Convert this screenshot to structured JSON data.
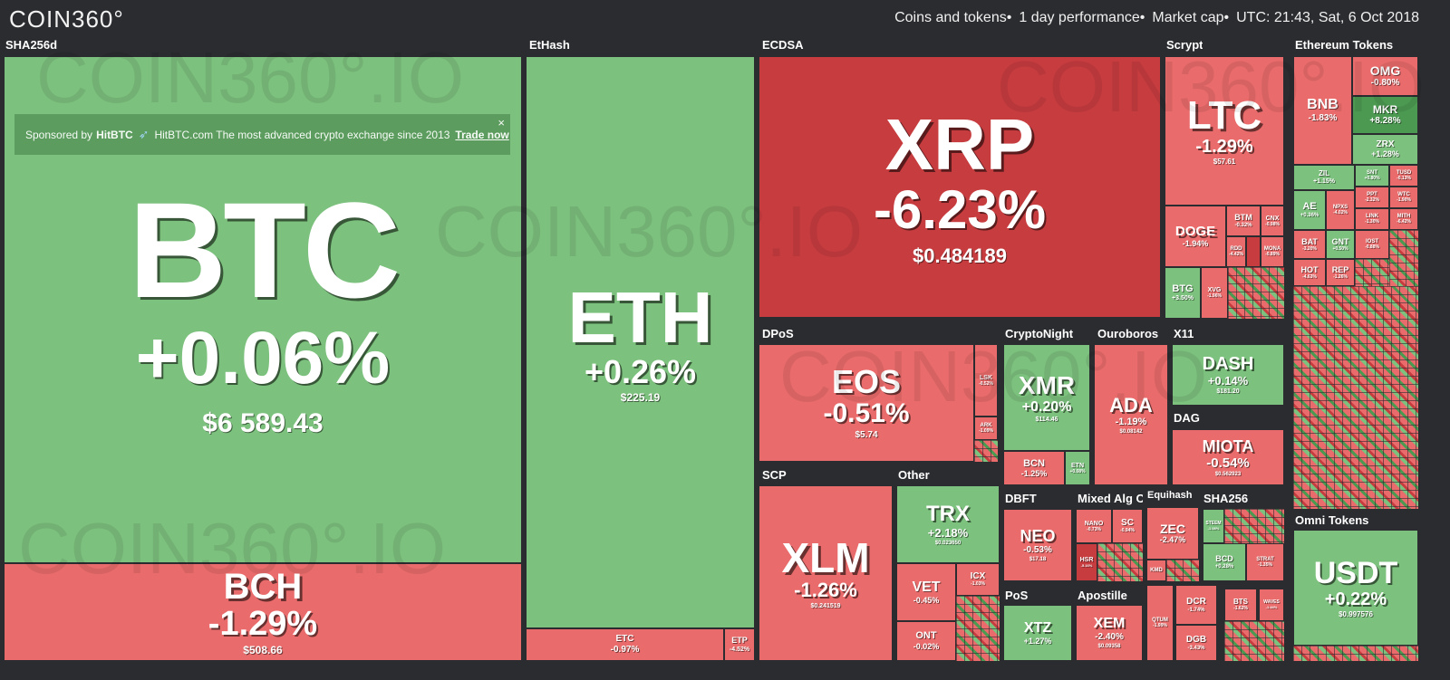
{
  "header": {
    "logo": "COIN360°",
    "filter": "Coins and tokens",
    "period": "1 day performance",
    "metric": "Market cap",
    "time": "UTC: 21:43, Sat, 6 Oct 2018",
    "sep": "•"
  },
  "sponsor": {
    "prefix": "Sponsored by",
    "brand": "HitBTC",
    "text": "HitBTC.com The most advanced crypto exchange since 2013",
    "cta": "Trade now",
    "close": "×"
  },
  "groups": {
    "sha256d": "SHA256d",
    "ethash": "EtHash",
    "ecdsa": "ECDSA",
    "scrypt": "Scrypt",
    "ethereum_tokens": "Ethereum Tokens",
    "dpos": "DPoS",
    "cryptonight": "CryptoNight",
    "ouroboros": "Ouroboros",
    "x11": "X11",
    "dag": "DAG",
    "scp": "SCP",
    "other": "Other",
    "dbft": "DBFT",
    "mixed": "Mixed Alg Ca",
    "equihash": "Equihash",
    "sha256": "SHA256",
    "omni": "Omni Tokens",
    "pos": "PoS",
    "apostille": "Apostille"
  },
  "coins": {
    "btc": {
      "sym": "BTC",
      "chg": "+0.06%",
      "price": "$6 589.43"
    },
    "bch": {
      "sym": "BCH",
      "chg": "-1.29%",
      "price": "$508.66"
    },
    "eth": {
      "sym": "ETH",
      "chg": "+0.26%",
      "price": "$225.19"
    },
    "etc": {
      "sym": "ETC",
      "chg": "-0.97%"
    },
    "etp": {
      "sym": "ETP",
      "chg": "-4.52%"
    },
    "xrp": {
      "sym": "XRP",
      "chg": "-6.23%",
      "price": "$0.484189"
    },
    "ltc": {
      "sym": "LTC",
      "chg": "-1.29%",
      "price": "$57.61"
    },
    "doge": {
      "sym": "DOGE",
      "chg": "-1.94%"
    },
    "btm": {
      "sym": "BTM",
      "chg": "-0.32%"
    },
    "cnx": {
      "sym": "CNX",
      "chg": "-0.98%"
    },
    "rdd": {
      "sym": "RDD",
      "chg": "-4.42%"
    },
    "mona": {
      "sym": "MONA",
      "chg": "-0.89%"
    },
    "btg": {
      "sym": "BTG",
      "chg": "+3.50%"
    },
    "xvg": {
      "sym": "XVG",
      "chg": "-1.96%"
    },
    "eos": {
      "sym": "EOS",
      "chg": "-0.51%",
      "price": "$5.74"
    },
    "lsk": {
      "sym": "LSK",
      "chg": "-0.52%"
    },
    "ark": {
      "sym": "ARK",
      "chg": "-1.09%"
    },
    "xmr": {
      "sym": "XMR",
      "chg": "+0.20%",
      "price": "$114.46"
    },
    "bcn": {
      "sym": "BCN",
      "chg": "-1.25%"
    },
    "etn": {
      "sym": "ETN",
      "chg": "+0.08%"
    },
    "ada": {
      "sym": "ADA",
      "chg": "-1.19%",
      "price": "$0.08142"
    },
    "dash": {
      "sym": "DASH",
      "chg": "+0.14%",
      "price": "$181.20"
    },
    "miota": {
      "sym": "MIOTA",
      "chg": "-0.54%",
      "price": "$0.562923"
    },
    "xlm": {
      "sym": "XLM",
      "chg": "-1.26%",
      "price": "$0.241519"
    },
    "trx": {
      "sym": "TRX",
      "chg": "+2.18%",
      "price": "$0.023650"
    },
    "vet": {
      "sym": "VET",
      "chg": "-0.45%"
    },
    "icx": {
      "sym": "ICX",
      "chg": "-1.03%"
    },
    "ont": {
      "sym": "ONT",
      "chg": "-0.02%"
    },
    "neo": {
      "sym": "NEO",
      "chg": "-0.53%",
      "price": "$17.18"
    },
    "nano": {
      "sym": "NANO",
      "chg": "-0.73%"
    },
    "sc": {
      "sym": "SC",
      "chg": "-0.94%"
    },
    "hsr": {
      "sym": "HSR",
      "chg": "-5.16%"
    },
    "zec": {
      "sym": "ZEC",
      "chg": "-2.47%"
    },
    "kmd": {
      "sym": "KMD",
      "chg": "-1.85%"
    },
    "steem": {
      "sym": "STEEM",
      "chg": "-1.08%"
    },
    "bcd": {
      "sym": "BCD",
      "chg": "+0.28%"
    },
    "strat": {
      "sym": "STRAT",
      "chg": "-1.35%"
    },
    "xtz": {
      "sym": "XTZ",
      "chg": "+1.27%"
    },
    "xem": {
      "sym": "XEM",
      "chg": "-2.40%",
      "price": "$0.09358"
    },
    "qtum": {
      "sym": "QTUM",
      "chg": "-1.99%"
    },
    "dcr": {
      "sym": "DCR",
      "chg": "-1.74%"
    },
    "bts": {
      "sym": "BTS",
      "chg": "-1.62%"
    },
    "waves": {
      "sym": "WAVES",
      "chg": "-1.44%"
    },
    "dgb": {
      "sym": "DGB",
      "chg": "-3.43%"
    },
    "omg": {
      "sym": "OMG",
      "chg": "-0.80%"
    },
    "bnb": {
      "sym": "BNB",
      "chg": "-1.83%"
    },
    "mkr": {
      "sym": "MKR",
      "chg": "+8.28%"
    },
    "zrx": {
      "sym": "ZRX",
      "chg": "+1.28%"
    },
    "zil": {
      "sym": "ZIL",
      "chg": "+1.15%"
    },
    "snt": {
      "sym": "SNT",
      "chg": "+0.80%"
    },
    "tusd": {
      "sym": "TUSD",
      "chg": "-0.13%"
    },
    "ae": {
      "sym": "AE",
      "chg": "+0.36%"
    },
    "npxs": {
      "sym": "NPXS",
      "chg": "-4.02%"
    },
    "ppt": {
      "sym": "PPT",
      "chg": "-2.32%"
    },
    "wtc": {
      "sym": "WTC",
      "chg": "-1.90%"
    },
    "bat": {
      "sym": "BAT",
      "chg": "-3.20%"
    },
    "gnt": {
      "sym": "GNT",
      "chg": "+0.50%"
    },
    "link": {
      "sym": "LINK",
      "chg": "-1.30%"
    },
    "mith": {
      "sym": "MITH",
      "chg": "-6.42%"
    },
    "hot": {
      "sym": "HOT",
      "chg": "-4.63%"
    },
    "rep": {
      "sym": "REP",
      "chg": "-1.26%"
    },
    "iost": {
      "sym": "IOST",
      "chg": "-0.88%"
    },
    "usdt": {
      "sym": "USDT",
      "chg": "+0.22%",
      "price": "$0.997576"
    }
  },
  "watermark": "COIN360°.IO"
}
